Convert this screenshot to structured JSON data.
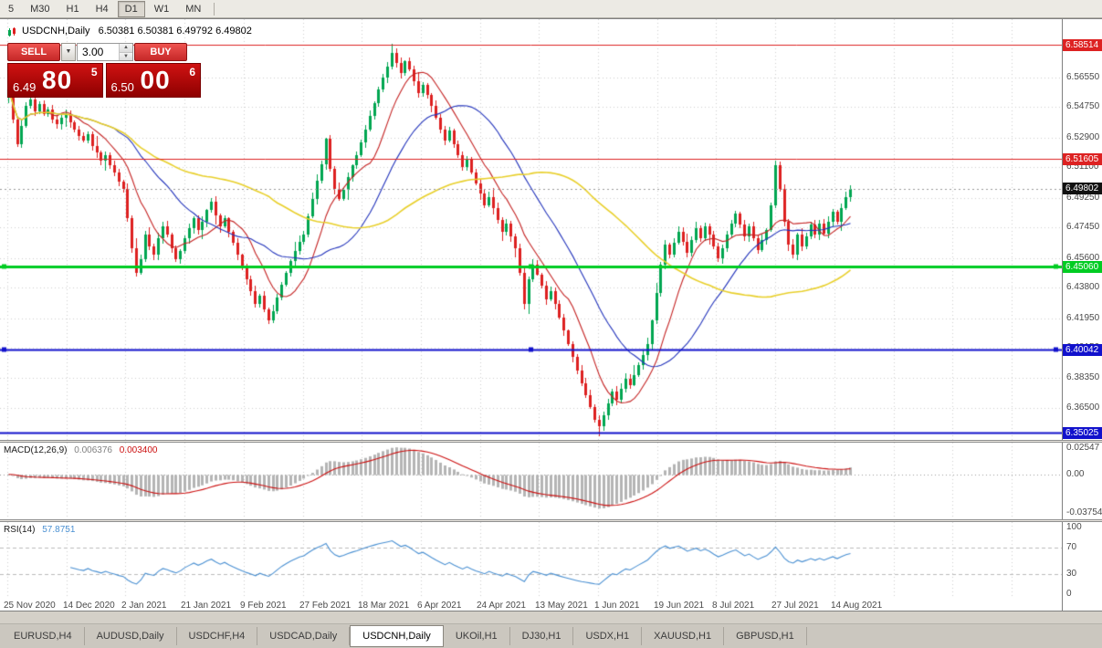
{
  "toolbar": {
    "periods": [
      {
        "label": "5",
        "active": false
      },
      {
        "label": "M30",
        "active": false
      },
      {
        "label": "H1",
        "active": false
      },
      {
        "label": "H4",
        "active": false
      },
      {
        "label": "D1",
        "active": true
      },
      {
        "label": "W1",
        "active": false
      },
      {
        "label": "MN",
        "active": false
      }
    ]
  },
  "chart_header": {
    "title": "USDCNH,Daily",
    "ohlc": "6.50381 6.50381 6.49792 6.49802"
  },
  "trade_panel": {
    "sell_label": "SELL",
    "buy_label": "BUY",
    "volume": "3.00",
    "sell_price": {
      "base": "6.49",
      "big": "80",
      "sup": "5"
    },
    "buy_price": {
      "base": "6.50",
      "big": "00",
      "sup": "6"
    }
  },
  "icons": {
    "dropdown": "▼",
    "spin_up": "▲",
    "spin_down": "▼"
  },
  "price_axis": {
    "labels": [
      "6.56550",
      "6.54750",
      "6.52900",
      "6.51100",
      "6.49250",
      "6.47450",
      "6.45600",
      "6.43800",
      "6.41950",
      "6.40150",
      "6.38350",
      "6.36500"
    ]
  },
  "macd_panel": {
    "title": "MACD(12,26,9)",
    "main_value": "0.006376",
    "signal_value": "0.003400",
    "axis_labels": [
      "0.02547",
      "0.00",
      "-0.03754"
    ]
  },
  "rsi_panel": {
    "title": "RSI(14)",
    "value": "57.8751",
    "axis_labels": [
      "100",
      "70",
      "30",
      "0"
    ]
  },
  "date_axis": {
    "labels": [
      "25 Nov 2020",
      "14 Dec 2020",
      "2 Jan 2021",
      "21 Jan 2021",
      "9 Feb 2021",
      "27 Feb 2021",
      "18 Mar 2021",
      "6 Apr 2021",
      "24 Apr 2021",
      "13 May 2021",
      "1 Jun 2021",
      "19 Jun 2021",
      "8 Jul 2021",
      "27 Jul 2021",
      "14 Aug 2021"
    ]
  },
  "tabs": {
    "items": [
      {
        "label": "EURUSD,H4",
        "active": false
      },
      {
        "label": "AUDUSD,Daily",
        "active": false
      },
      {
        "label": "USDCHF,H4",
        "active": false
      },
      {
        "label": "USDCAD,Daily",
        "active": false
      },
      {
        "label": "USDCNH,Daily",
        "active": true
      },
      {
        "label": "UKOil,H1",
        "active": false
      },
      {
        "label": "DJ30,H1",
        "active": false
      },
      {
        "label": "USDX,H1",
        "active": false
      },
      {
        "label": "XAUUSD,H1",
        "active": false
      },
      {
        "label": "GBPUSD,H1",
        "active": false
      }
    ]
  },
  "chart_data": {
    "type": "candlestick",
    "symbol": "USDCNH",
    "timeframe": "Daily",
    "last_ohlc": {
      "open": 6.50381,
      "high": 6.50381,
      "low": 6.49792,
      "close": 6.49802
    },
    "ylim": [
      6.3465,
      6.6006
    ],
    "x_range_dates": [
      "25 Nov 2020",
      "14 Aug 2021"
    ],
    "up_color": "#00a651",
    "down_color": "#dd2020",
    "open_first": 6.553,
    "closes": [
      6.558,
      6.54,
      6.525,
      6.536,
      6.548,
      6.552,
      6.545,
      6.549,
      6.543,
      6.546,
      6.54,
      6.537,
      6.541,
      6.543,
      6.538,
      6.534,
      6.53,
      6.527,
      6.531,
      6.524,
      6.52,
      6.515,
      6.518,
      6.512,
      6.508,
      6.502,
      6.498,
      6.48,
      6.462,
      6.447,
      6.455,
      6.47,
      6.463,
      6.458,
      6.468,
      6.475,
      6.47,
      6.462,
      6.455,
      6.46,
      6.468,
      6.474,
      6.48,
      6.473,
      6.478,
      6.485,
      6.49,
      6.482,
      6.475,
      6.48,
      6.472,
      6.465,
      6.458,
      6.45,
      6.443,
      6.436,
      6.428,
      6.433,
      6.425,
      6.418,
      6.424,
      6.432,
      6.44,
      6.447,
      6.454,
      6.46,
      6.466,
      6.47,
      6.481,
      6.492,
      6.503,
      6.513,
      6.528,
      6.51,
      6.498,
      6.492,
      6.497,
      6.505,
      6.512,
      6.518,
      6.526,
      6.534,
      6.542,
      6.55,
      6.558,
      6.565,
      6.572,
      6.58,
      6.574,
      6.568,
      6.575,
      6.57,
      6.563,
      6.556,
      6.561,
      6.555,
      6.548,
      6.541,
      6.534,
      6.527,
      6.533,
      6.525,
      6.518,
      6.511,
      6.516,
      6.508,
      6.501,
      6.495,
      6.488,
      6.493,
      6.486,
      6.479,
      6.472,
      6.477,
      6.469,
      6.462,
      6.447,
      6.428,
      6.443,
      6.452,
      6.446,
      6.439,
      6.431,
      6.436,
      6.428,
      6.42,
      6.412,
      6.404,
      6.396,
      6.388,
      6.38,
      6.373,
      6.366,
      6.358,
      6.354,
      6.361,
      6.368,
      6.375,
      6.37,
      6.377,
      6.383,
      6.379,
      6.385,
      6.391,
      6.397,
      6.404,
      6.418,
      6.435,
      6.452,
      6.464,
      6.458,
      6.465,
      6.472,
      6.466,
      6.459,
      6.467,
      6.474,
      6.468,
      6.475,
      6.47,
      6.463,
      6.456,
      6.462,
      6.47,
      6.477,
      6.483,
      6.476,
      6.469,
      6.475,
      6.468,
      6.461,
      6.467,
      6.473,
      6.488,
      6.512,
      6.498,
      6.478,
      6.464,
      6.458,
      6.47,
      6.463,
      6.469,
      6.476,
      6.47,
      6.477,
      6.471,
      6.478,
      6.484,
      6.478,
      6.486,
      6.493,
      6.498
    ],
    "moving_averages": [
      {
        "name": "MA fast",
        "period": 10,
        "color": "#c42222"
      },
      {
        "name": "MA mid",
        "period": 25,
        "color": "#2233bb"
      },
      {
        "name": "MA slow",
        "period": 60,
        "color": "#e8cf2a"
      }
    ],
    "levels": [
      {
        "label": "6.58514",
        "value": 6.58514,
        "color": "#dd2222",
        "width": 1,
        "handles": false,
        "kind": "resistance"
      },
      {
        "label": "6.51605",
        "value": 6.51605,
        "color": "#dd2222",
        "width": 1,
        "handles": false,
        "kind": "resistance"
      },
      {
        "label": "6.49802",
        "value": 6.49802,
        "color": "#111111",
        "width": 1,
        "handles": false,
        "kind": "current-price"
      },
      {
        "label": "6.45060",
        "value": 6.4506,
        "color": "#00cc22",
        "width": 3,
        "handles": true,
        "kind": "support"
      },
      {
        "label": "6.40042",
        "value": 6.40042,
        "color": "#1111cc",
        "width": 2,
        "handles": true,
        "kind": "support"
      },
      {
        "label": "6.35025",
        "value": 6.35025,
        "color": "#1111cc",
        "width": 2,
        "handles": false,
        "kind": "support"
      }
    ],
    "macd": {
      "fast": 12,
      "slow": 26,
      "signal": 9,
      "hist_color": "#b4b4b4",
      "signal_color": "#cc1111",
      "scale_max": 0.025473,
      "scale_min": -0.037546,
      "main_value": 0.006376,
      "signal_value": 0.0034
    },
    "rsi": {
      "period": 14,
      "color": "#4a90d2",
      "levels": [
        70,
        30
      ],
      "value": 57.8751
    }
  }
}
